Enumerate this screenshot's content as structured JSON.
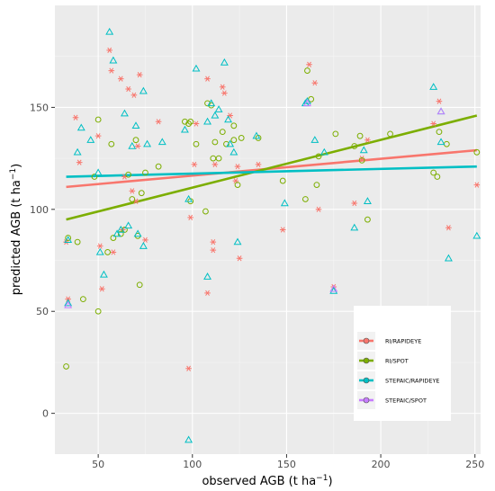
{
  "chart_data": {
    "type": "scatter",
    "xlabel": "observed AGB (t ha",
    "xlabel_sup": "−1",
    "xlabel_end": ")",
    "ylabel": "predicted AGB (t ha",
    "ylabel_sup": "−1",
    "ylabel_end": ")",
    "xlim": [
      27,
      253
    ],
    "ylim": [
      -20,
      200
    ],
    "x_ticks": [
      50,
      100,
      150,
      200,
      250
    ],
    "y_ticks": [
      0,
      50,
      100,
      150
    ],
    "x_tick_labels": [
      "50",
      "100",
      "150",
      "200",
      "250"
    ],
    "y_tick_labels": [
      "0",
      "50",
      "100",
      "150"
    ],
    "grid": true,
    "legend_position": "bottom-right",
    "legend": [
      {
        "label": "RI/RAPIDEYE",
        "color": "#F8766D",
        "shape": "circle"
      },
      {
        "label": "RI/SPOT",
        "color": "#7CAE00",
        "shape": "circle"
      },
      {
        "label": "STEPAIC/RAPIDEYE",
        "color": "#00BFC4",
        "shape": "circle"
      },
      {
        "label": "STEPAIC/SPOT",
        "color": "#C77CFF",
        "shape": "circle"
      }
    ],
    "fit_lines": [
      {
        "name": "RI/RAPIDEYE",
        "color": "#F8766D",
        "x": [
          33,
          251
        ],
        "y": [
          111,
          129
        ]
      },
      {
        "name": "RI/SPOT",
        "color": "#7CAE00",
        "x": [
          33,
          251
        ],
        "y": [
          95,
          146
        ]
      },
      {
        "name": "STEPAIC/RAPIDEYE",
        "color": "#00BFC4",
        "x": [
          33,
          251
        ],
        "y": [
          116,
          121
        ]
      }
    ],
    "series": [
      {
        "name": "RI/RAPIDEYE",
        "marker": "asterisk",
        "color": "#F8766D",
        "points": [
          [
            33,
            84
          ],
          [
            34,
            56
          ],
          [
            38,
            145
          ],
          [
            40,
            123
          ],
          [
            50,
            136
          ],
          [
            51,
            82
          ],
          [
            52,
            61
          ],
          [
            56,
            178
          ],
          [
            57,
            168
          ],
          [
            58,
            79
          ],
          [
            62,
            164
          ],
          [
            63,
            90
          ],
          [
            64,
            116
          ],
          [
            66,
            159
          ],
          [
            68,
            109
          ],
          [
            69,
            156
          ],
          [
            70,
            104
          ],
          [
            71,
            131
          ],
          [
            72,
            166
          ],
          [
            75,
            85
          ],
          [
            82,
            143
          ],
          [
            98,
            22
          ],
          [
            99,
            96
          ],
          [
            101,
            122
          ],
          [
            102,
            142
          ],
          [
            108,
            59
          ],
          [
            108,
            164
          ],
          [
            111,
            84
          ],
          [
            111,
            80
          ],
          [
            112,
            122
          ],
          [
            116,
            160
          ],
          [
            117,
            157
          ],
          [
            120,
            146
          ],
          [
            123,
            114
          ],
          [
            124,
            121
          ],
          [
            125,
            76
          ],
          [
            135,
            122
          ],
          [
            148,
            90
          ],
          [
            162,
            171
          ],
          [
            165,
            162
          ],
          [
            167,
            100
          ],
          [
            175,
            62
          ],
          [
            186,
            103
          ],
          [
            190,
            125
          ],
          [
            193,
            134
          ],
          [
            228,
            142
          ],
          [
            231,
            153
          ],
          [
            236,
            91
          ],
          [
            251,
            112
          ]
        ]
      },
      {
        "name": "RI/SPOT",
        "marker": "circle",
        "color": "#7CAE00",
        "points": [
          [
            33,
            23
          ],
          [
            34,
            86
          ],
          [
            39,
            84
          ],
          [
            42,
            56
          ],
          [
            48,
            116
          ],
          [
            50,
            144
          ],
          [
            50,
            50
          ],
          [
            55,
            79
          ],
          [
            57,
            132
          ],
          [
            58,
            86
          ],
          [
            62,
            88
          ],
          [
            64,
            90
          ],
          [
            66,
            117
          ],
          [
            68,
            105
          ],
          [
            70,
            134
          ],
          [
            71,
            87
          ],
          [
            72,
            63
          ],
          [
            73,
            108
          ],
          [
            75,
            118
          ],
          [
            82,
            121
          ],
          [
            96,
            143
          ],
          [
            98,
            142
          ],
          [
            99,
            104
          ],
          [
            99,
            143
          ],
          [
            102,
            132
          ],
          [
            107,
            99
          ],
          [
            108,
            152
          ],
          [
            110,
            151
          ],
          [
            111,
            125
          ],
          [
            112,
            133
          ],
          [
            114,
            125
          ],
          [
            116,
            138
          ],
          [
            118,
            132
          ],
          [
            122,
            134
          ],
          [
            122,
            141
          ],
          [
            124,
            112
          ],
          [
            126,
            135
          ],
          [
            135,
            135
          ],
          [
            148,
            114
          ],
          [
            160,
            105
          ],
          [
            161,
            168
          ],
          [
            163,
            154
          ],
          [
            166,
            112
          ],
          [
            167,
            126
          ],
          [
            176,
            137
          ],
          [
            186,
            131
          ],
          [
            189,
            136
          ],
          [
            190,
            124
          ],
          [
            193,
            95
          ],
          [
            205,
            137
          ],
          [
            228,
            118
          ],
          [
            230,
            116
          ],
          [
            231,
            138
          ],
          [
            235,
            132
          ],
          [
            251,
            128
          ]
        ]
      },
      {
        "name": "STEPAIC/RAPIDEYE",
        "marker": "triangle",
        "color": "#00BFC4",
        "points": [
          [
            34,
            54
          ],
          [
            34,
            85
          ],
          [
            39,
            128
          ],
          [
            41,
            140
          ],
          [
            46,
            134
          ],
          [
            50,
            118
          ],
          [
            51,
            79
          ],
          [
            53,
            68
          ],
          [
            56,
            187
          ],
          [
            58,
            173
          ],
          [
            60,
            88
          ],
          [
            62,
            90
          ],
          [
            64,
            147
          ],
          [
            66,
            92
          ],
          [
            68,
            131
          ],
          [
            70,
            141
          ],
          [
            71,
            88
          ],
          [
            74,
            158
          ],
          [
            74,
            82
          ],
          [
            76,
            132
          ],
          [
            84,
            133
          ],
          [
            96,
            139
          ],
          [
            98,
            105
          ],
          [
            98,
            -13
          ],
          [
            102,
            169
          ],
          [
            108,
            67
          ],
          [
            108,
            143
          ],
          [
            110,
            152
          ],
          [
            112,
            146
          ],
          [
            114,
            149
          ],
          [
            117,
            172
          ],
          [
            119,
            144
          ],
          [
            120,
            132
          ],
          [
            122,
            128
          ],
          [
            124,
            84
          ],
          [
            134,
            136
          ],
          [
            149,
            103
          ],
          [
            160,
            152
          ],
          [
            161,
            153
          ],
          [
            165,
            134
          ],
          [
            170,
            128
          ],
          [
            175,
            60
          ],
          [
            186,
            91
          ],
          [
            191,
            129
          ],
          [
            193,
            104
          ],
          [
            228,
            160
          ],
          [
            232,
            133
          ],
          [
            236,
            76
          ],
          [
            251,
            87
          ],
          [
            232,
            148
          ]
        ]
      },
      {
        "name": "STEPAIC/SPOT",
        "marker": "triangle",
        "color": "#C77CFF",
        "points": [
          [
            34,
            53
          ],
          [
            161,
            152
          ],
          [
            175,
            61
          ],
          [
            232,
            148
          ]
        ]
      }
    ]
  }
}
